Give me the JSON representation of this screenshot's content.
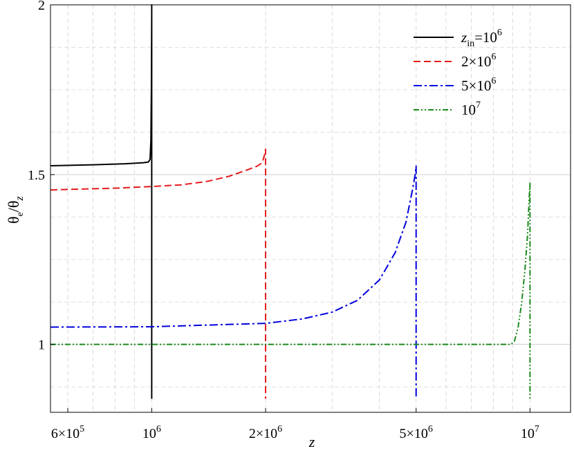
{
  "chart_data": {
    "type": "line",
    "title": "",
    "xscale": "log",
    "xlim": [
      540000,
      12800000
    ],
    "ylim": [
      0.8,
      2.0
    ],
    "grid": true,
    "legend_position": "top-right",
    "xlabel": "z",
    "ylabel": {
      "base1": "θ",
      "sub1": "e",
      "mid": "/θ",
      "sub2": "z"
    },
    "x_ticks": [
      {
        "value": 600000,
        "base": "6×10",
        "exp": "5"
      },
      {
        "value": 1000000,
        "base": "10",
        "exp": "6"
      },
      {
        "value": 2000000,
        "base": "2×10",
        "exp": "6"
      },
      {
        "value": 5000000,
        "base": "5×10",
        "exp": "6"
      },
      {
        "value": 10000000,
        "base": "10",
        "exp": "7"
      }
    ],
    "y_ticks": [
      {
        "value": 1,
        "label": "1"
      },
      {
        "value": 1.5,
        "label": "1.5"
      },
      {
        "value": 2,
        "label": "2"
      }
    ],
    "series": [
      {
        "legend": {
          "var": "z",
          "sub": "in",
          "eq": "=10",
          "exp": "6"
        },
        "color": "#000000",
        "dash": "",
        "points": [
          [
            540000,
            1.526
          ],
          [
            700000,
            1.529
          ],
          [
            850000,
            1.532
          ],
          [
            950000,
            1.535
          ],
          [
            980000,
            1.537
          ],
          [
            990000,
            1.545
          ],
          [
            995000,
            1.6
          ],
          [
            998000,
            1.75
          ],
          [
            1000000,
            1.97
          ],
          [
            1000000,
            2.0
          ],
          [
            1000000,
            0.84
          ]
        ]
      },
      {
        "legend": {
          "var": "",
          "sub": "",
          "eq": "2×10",
          "exp": "6"
        },
        "color": "#e41a1c",
        "dash": "10,5",
        "points": [
          [
            540000,
            1.455
          ],
          [
            800000,
            1.46
          ],
          [
            1000000,
            1.465
          ],
          [
            1200000,
            1.47
          ],
          [
            1400000,
            1.48
          ],
          [
            1600000,
            1.495
          ],
          [
            1800000,
            1.515
          ],
          [
            1900000,
            1.525
          ],
          [
            1960000,
            1.535
          ],
          [
            1990000,
            1.56
          ],
          [
            2000000,
            1.575
          ],
          [
            2000000,
            0.84
          ]
        ]
      },
      {
        "legend": {
          "var": "",
          "sub": "",
          "eq": "5×10",
          "exp": "6"
        },
        "color": "#0000dd",
        "dash": "12,4,3,4",
        "points": [
          [
            540000,
            1.051
          ],
          [
            1000000,
            1.052
          ],
          [
            2000000,
            1.062
          ],
          [
            2500000,
            1.075
          ],
          [
            3000000,
            1.095
          ],
          [
            3500000,
            1.13
          ],
          [
            4000000,
            1.19
          ],
          [
            4400000,
            1.27
          ],
          [
            4700000,
            1.36
          ],
          [
            4900000,
            1.46
          ],
          [
            4970000,
            1.5
          ],
          [
            5000000,
            1.525
          ],
          [
            5000000,
            0.84
          ]
        ]
      },
      {
        "legend": {
          "var": "",
          "sub": "",
          "eq": "10",
          "exp": "7"
        },
        "color": "#1a8a1a",
        "dash": "8,3,2,3,2,3",
        "points": [
          [
            540000,
            1.0
          ],
          [
            7000000,
            1.0
          ],
          [
            8900000,
            1.0
          ],
          [
            9100000,
            1.01
          ],
          [
            9300000,
            1.05
          ],
          [
            9500000,
            1.12
          ],
          [
            9700000,
            1.22
          ],
          [
            9850000,
            1.32
          ],
          [
            9950000,
            1.43
          ],
          [
            10000000,
            1.475
          ],
          [
            10000000,
            0.84
          ]
        ]
      }
    ]
  }
}
